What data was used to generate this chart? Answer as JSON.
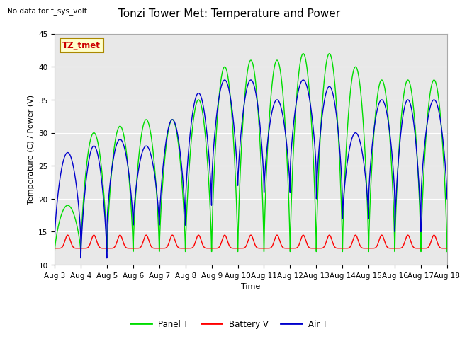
{
  "title": "Tonzi Tower Met: Temperature and Power",
  "xlabel": "Time",
  "ylabel": "Temperature (C) / Power (V)",
  "top_left_text": "No data for f_sys_volt",
  "annotation_text": "TZ_tmet",
  "ylim": [
    10,
    45
  ],
  "yticks": [
    10,
    15,
    20,
    25,
    30,
    35,
    40,
    45
  ],
  "xtick_labels": [
    "Aug 3",
    "Aug 4",
    "Aug 5",
    "Aug 6",
    "Aug 7",
    "Aug 8",
    "Aug 9",
    "Aug 10",
    "Aug 11",
    "Aug 12",
    "Aug 13",
    "Aug 14",
    "Aug 15",
    "Aug 16",
    "Aug 17",
    "Aug 18"
  ],
  "panel_color": "#00dd00",
  "battery_color": "#ff0000",
  "air_color": "#0000cc",
  "legend_labels": [
    "Panel T",
    "Battery V",
    "Air T"
  ],
  "plot_bg_color": "#e8e8e8",
  "fig_bg_color": "#ffffff",
  "grid_color": "#ffffff",
  "num_days": 15,
  "panel_peaks": [
    19,
    30,
    31,
    32,
    32,
    35,
    40,
    41,
    41,
    42,
    42,
    40,
    38,
    38,
    38
  ],
  "panel_troughs": [
    12,
    12,
    12,
    12,
    12,
    12,
    12,
    12,
    12,
    12,
    12,
    12,
    12,
    12,
    12
  ],
  "air_peaks": [
    27,
    28,
    29,
    28,
    32,
    36,
    38,
    38,
    35,
    38,
    37,
    30,
    35,
    35,
    35
  ],
  "air_troughs": [
    14,
    11,
    16,
    16,
    16,
    19,
    22,
    22,
    21,
    24,
    20,
    17,
    20,
    15,
    20
  ],
  "battery_base": 12.5,
  "battery_peak": 14.5,
  "title_fontsize": 11,
  "axis_fontsize": 8,
  "tick_fontsize": 7.5,
  "annot_fontsize": 8.5
}
